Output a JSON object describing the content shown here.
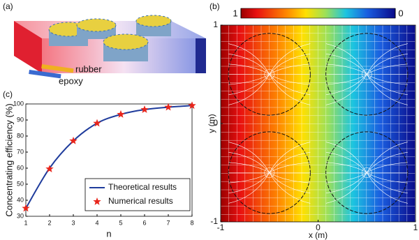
{
  "panel_labels": [
    "(a)",
    "(b)",
    "(c)"
  ],
  "illustration": {
    "labels": [
      "rubber",
      "epoxy"
    ]
  },
  "chart_data": [
    {
      "type": "line",
      "xlabel": "n",
      "ylabel": "Concentrating efficiency (%)",
      "x": [
        1,
        2,
        3,
        4,
        5,
        6,
        7,
        8
      ],
      "xlim": [
        1,
        8
      ],
      "xticks": [
        1,
        2,
        3,
        4,
        5,
        6,
        7,
        8
      ],
      "ylim": [
        30,
        100
      ],
      "yticks": [
        30,
        40,
        50,
        60,
        70,
        80,
        90,
        100
      ],
      "grid": false,
      "legend": "lower right",
      "series": [
        {
          "name": "Theoretical results",
          "color": "#1f3c9c",
          "marker": "line",
          "values": [
            35,
            60,
            77,
            88,
            93.5,
            96.5,
            98,
            99
          ]
        },
        {
          "name": "Numerical results",
          "color": "#e8251b",
          "marker": "star",
          "values": [
            35,
            59.5,
            77,
            88,
            93.5,
            96.5,
            98,
            99
          ]
        }
      ]
    },
    {
      "type": "heatmap",
      "xlabel": "x (m)",
      "ylabel": "y (m)",
      "xlim": [
        -1,
        1
      ],
      "xticks": [
        -1,
        0,
        1
      ],
      "ylim": [
        -1,
        1
      ],
      "yticks": [
        -1,
        0,
        1
      ],
      "colorbar_ticks": [
        1,
        0
      ]
    }
  ]
}
